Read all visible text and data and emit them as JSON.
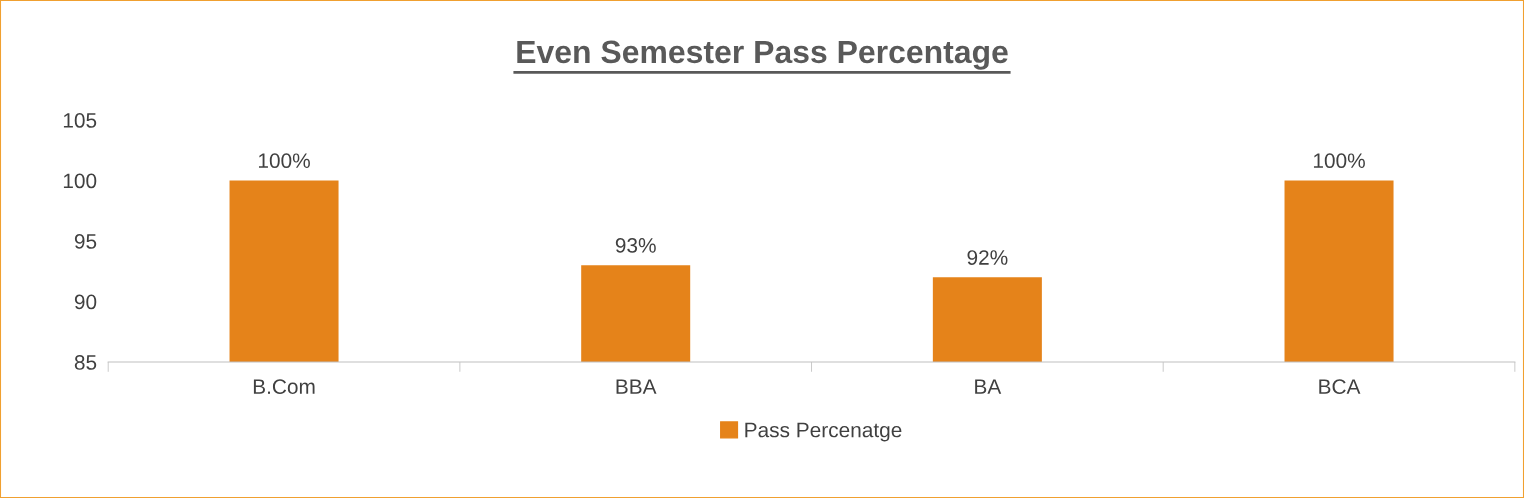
{
  "chart_data": {
    "type": "bar",
    "title": "Even Semester Pass Percentage",
    "categories": [
      "B.Com",
      "BBA",
      "BA",
      "BCA"
    ],
    "series": [
      {
        "name": "Pass Percenatge",
        "color": "#e5831a",
        "values": [
          100,
          93,
          92,
          100
        ],
        "value_labels": [
          "100%",
          "93%",
          "92%",
          "100%"
        ]
      }
    ],
    "ylim": [
      85,
      105
    ],
    "yticks": [
      85,
      90,
      95,
      100,
      105
    ],
    "grid": false,
    "legend": "bottom"
  }
}
